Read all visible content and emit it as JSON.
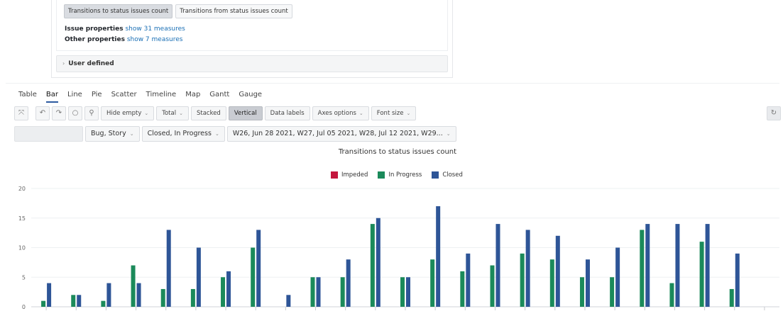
{
  "measures_panel": {
    "buttons": [
      {
        "label": "Transitions to status issues count",
        "active": true
      },
      {
        "label": "Transitions from status issues count",
        "active": false
      }
    ],
    "issue_properties": {
      "label": "Issue properties",
      "link": "show 31 measures"
    },
    "other_properties": {
      "label": "Other properties",
      "link": "show 7 measures"
    },
    "user_defined": {
      "chevron": "›",
      "label": "User defined"
    }
  },
  "chart_tabs": [
    "Table",
    "Bar",
    "Line",
    "Pie",
    "Scatter",
    "Timeline",
    "Map",
    "Gantt",
    "Gauge"
  ],
  "active_tab": "Bar",
  "toolbar": {
    "icons": [
      {
        "name": "fullscreen-icon",
        "glyph": "⤧"
      },
      {
        "name": "undo-icon",
        "glyph": "↶"
      },
      {
        "name": "redo-icon",
        "glyph": "↷"
      },
      {
        "name": "comment-icon",
        "glyph": "○"
      },
      {
        "name": "pin-icon",
        "glyph": "⚲"
      }
    ],
    "hide_empty": "Hide empty",
    "total": "Total",
    "stacked": "Stacked",
    "vertical": "Vertical",
    "data_labels": "Data labels",
    "axes_options": "Axes options",
    "font_size": "Font size",
    "refresh_glyph": "↻",
    "dropdown_glyph": "⌄"
  },
  "filters": {
    "issue_type": "Bug, Story",
    "status": "Closed, In Progress",
    "weeks": "W26, Jun 28 2021, W27, Jul 05 2021, W28, Jul 12 2021, W29..."
  },
  "chart_data": {
    "type": "bar",
    "title": "Transitions to status issues count",
    "ylim": [
      0,
      20
    ],
    "yticks": [
      0,
      5,
      10,
      15,
      20
    ],
    "grid": true,
    "legend_position": "top-center",
    "series": [
      {
        "name": "Impeded",
        "color": "#c4173e",
        "values": [
          0,
          0,
          0,
          0,
          0,
          0,
          0,
          0,
          0,
          0,
          0,
          0,
          0,
          0,
          0,
          0,
          0,
          0,
          0,
          0,
          0,
          0,
          0,
          0,
          0
        ]
      },
      {
        "name": "In Progress",
        "color": "#1b8a5a",
        "values": [
          1,
          2,
          1,
          7,
          3,
          3,
          5,
          10,
          0,
          5,
          5,
          14,
          5,
          8,
          6,
          7,
          9,
          8,
          5,
          5,
          13,
          4,
          11,
          3,
          0
        ]
      },
      {
        "name": "Closed",
        "color": "#2e5597",
        "values": [
          4,
          2,
          4,
          4,
          13,
          10,
          6,
          13,
          2,
          5,
          8,
          15,
          5,
          17,
          9,
          14,
          13,
          12,
          8,
          10,
          14,
          14,
          14,
          9,
          0
        ]
      }
    ]
  }
}
